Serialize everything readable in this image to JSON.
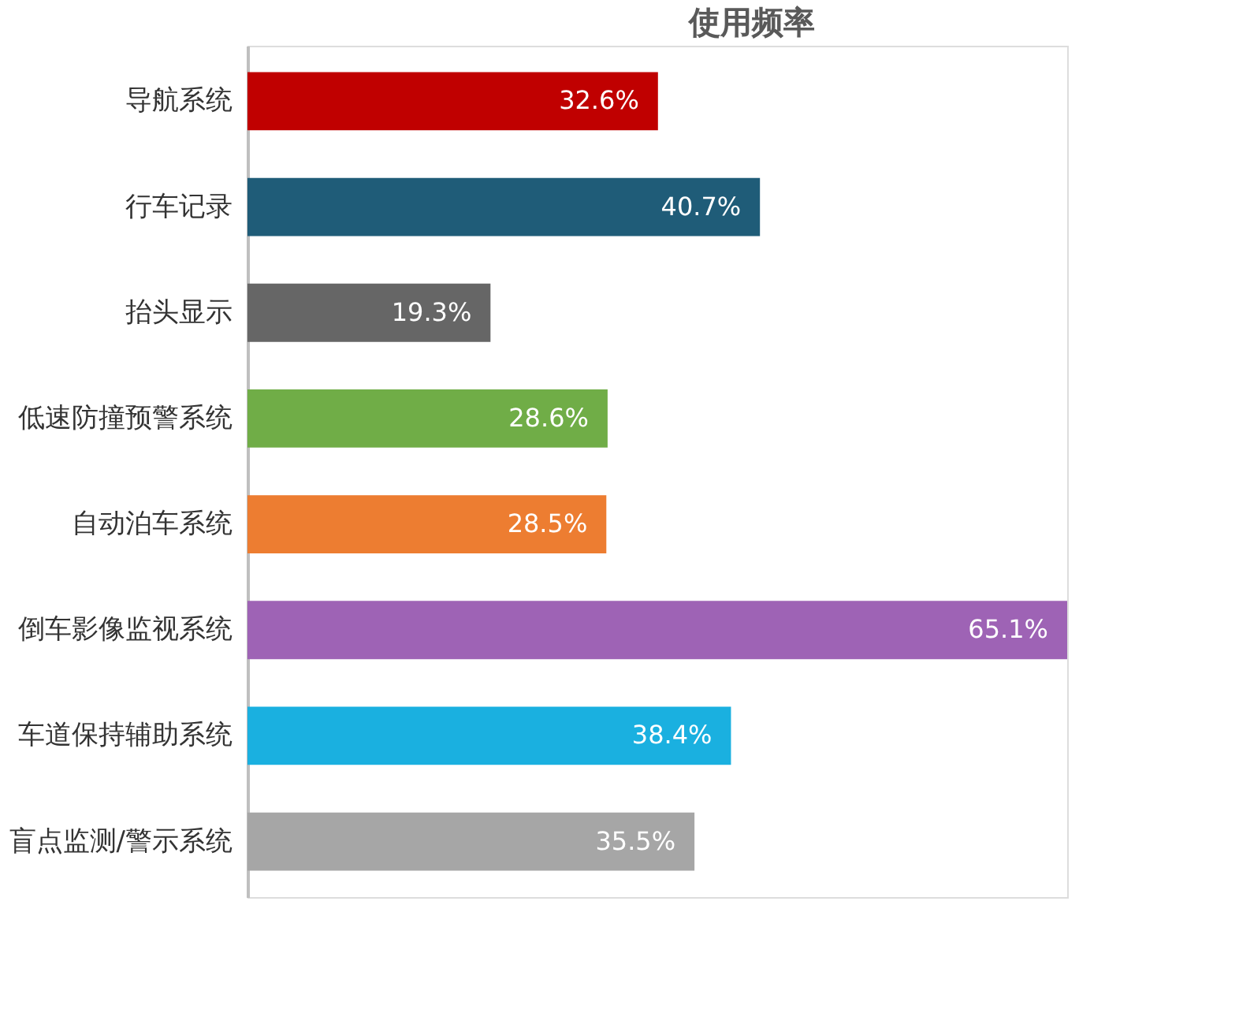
{
  "chart_data": {
    "type": "bar",
    "orientation": "horizontal",
    "title": "使用频率",
    "categories": [
      "导航系统",
      "行车记录",
      "抬头显示",
      "低速防撞预警系统",
      "自动泊车系统",
      "倒车影像监视系统",
      "车道保持辅助系统",
      "盲点监测/警示系统"
    ],
    "values": [
      32.6,
      40.7,
      19.3,
      28.6,
      28.5,
      65.1,
      38.4,
      35.5
    ],
    "value_labels": [
      "32.6%",
      "40.7%",
      "19.3%",
      "28.6%",
      "28.5%",
      "65.1%",
      "38.4%",
      "35.5%"
    ],
    "colors": [
      "#c00000",
      "#1f5c78",
      "#666666",
      "#70ad47",
      "#ed7d31",
      "#9e63b5",
      "#1ab0e0",
      "#a6a6a6"
    ]
  }
}
